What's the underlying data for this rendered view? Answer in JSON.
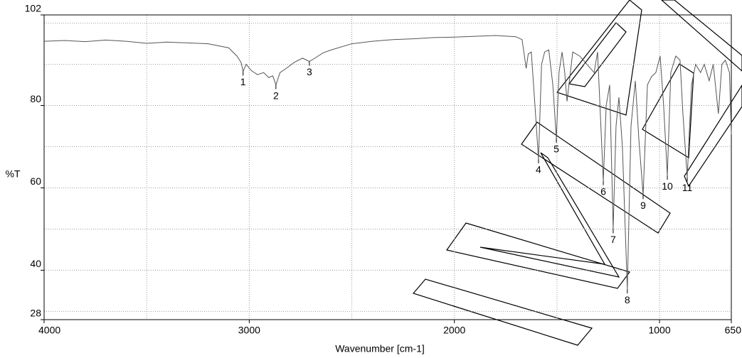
{
  "chart_data": {
    "type": "line",
    "y_label": "%T",
    "x_label": "Wavenumber [cm-1]",
    "color": "#555555",
    "xlim": [
      4000,
      650
    ],
    "ylim": [
      28,
      102
    ],
    "xticks": [
      4000,
      3000,
      2000,
      1000,
      650
    ],
    "yticks": [
      28,
      40,
      60,
      80,
      102
    ],
    "x_grid": [
      3500,
      3000,
      2500,
      2000,
      1500,
      1000
    ],
    "y_grid": [
      30,
      40,
      50,
      60,
      70,
      80,
      90,
      100
    ],
    "grid": true,
    "x": [
      4000,
      3900,
      3800,
      3700,
      3600,
      3500,
      3400,
      3300,
      3200,
      3100,
      3060,
      3040,
      3030,
      3015,
      2990,
      2960,
      2930,
      2905,
      2885,
      2870,
      2850,
      2820,
      2780,
      2740,
      2707,
      2680,
      2640,
      2600,
      2500,
      2400,
      2300,
      2200,
      2100,
      2000,
      1900,
      1800,
      1700,
      1670,
      1650,
      1640,
      1625,
      1607,
      1590,
      1575,
      1560,
      1540,
      1520,
      1503,
      1490,
      1475,
      1462,
      1451,
      1423,
      1389,
      1354,
      1319,
      1302,
      1274,
      1260,
      1243,
      1226,
      1212,
      1198,
      1181,
      1157,
      1139,
      1118,
      1101,
      1080,
      1059,
      1039,
      1018,
      997,
      980,
      962,
      945,
      921,
      900,
      886,
      865,
      844,
      824,
      800,
      782,
      758,
      738,
      713,
      696,
      679,
      659,
      650
    ],
    "values": [
      95.6,
      95.8,
      95.5,
      95.9,
      95.6,
      95.1,
      95.4,
      95.2,
      95.0,
      94.0,
      92.0,
      90.5,
      88.3,
      90.0,
      88.5,
      87.5,
      88.0,
      86.8,
      87.2,
      85.0,
      88.0,
      89.0,
      90.5,
      91.5,
      90.7,
      91.5,
      92.8,
      93.5,
      95.0,
      95.6,
      96.0,
      96.2,
      96.5,
      96.6,
      96.8,
      97.0,
      96.7,
      96.0,
      89.0,
      92.5,
      93.0,
      79.8,
      67.0,
      90.0,
      93.0,
      93.5,
      85.0,
      72.0,
      88.0,
      93.0,
      88.0,
      81.0,
      93.0,
      92.0,
      90.0,
      88.0,
      93.0,
      61.7,
      80.0,
      85.0,
      50.0,
      75.0,
      82.0,
      70.0,
      35.4,
      75.0,
      86.0,
      72.0,
      58.3,
      85.0,
      87.0,
      88.0,
      92.0,
      80.0,
      63.0,
      88.0,
      92.0,
      91.0,
      78.0,
      62.6,
      85.0,
      90.0,
      88.0,
      90.0,
      86.0,
      90.0,
      78.0,
      90.0,
      91.0,
      88.0,
      73.0
    ],
    "annotations": [
      {
        "text": "1",
        "x": 3030,
        "y": 88.3
      },
      {
        "text": "2",
        "x": 2870,
        "y": 85.0
      },
      {
        "text": "3",
        "x": 2707,
        "y": 90.7
      },
      {
        "text": "4",
        "x": 1590,
        "y": 67.0
      },
      {
        "text": "5",
        "x": 1503,
        "y": 72.0
      },
      {
        "text": "6",
        "x": 1274,
        "y": 61.7
      },
      {
        "text": "7",
        "x": 1226,
        "y": 50.0
      },
      {
        "text": "8",
        "x": 1157,
        "y": 35.4
      },
      {
        "text": "9",
        "x": 1080,
        "y": 58.3
      },
      {
        "text": "10",
        "x": 962,
        "y": 63.0
      },
      {
        "text": "11",
        "x": 865,
        "y": 62.6
      }
    ]
  }
}
